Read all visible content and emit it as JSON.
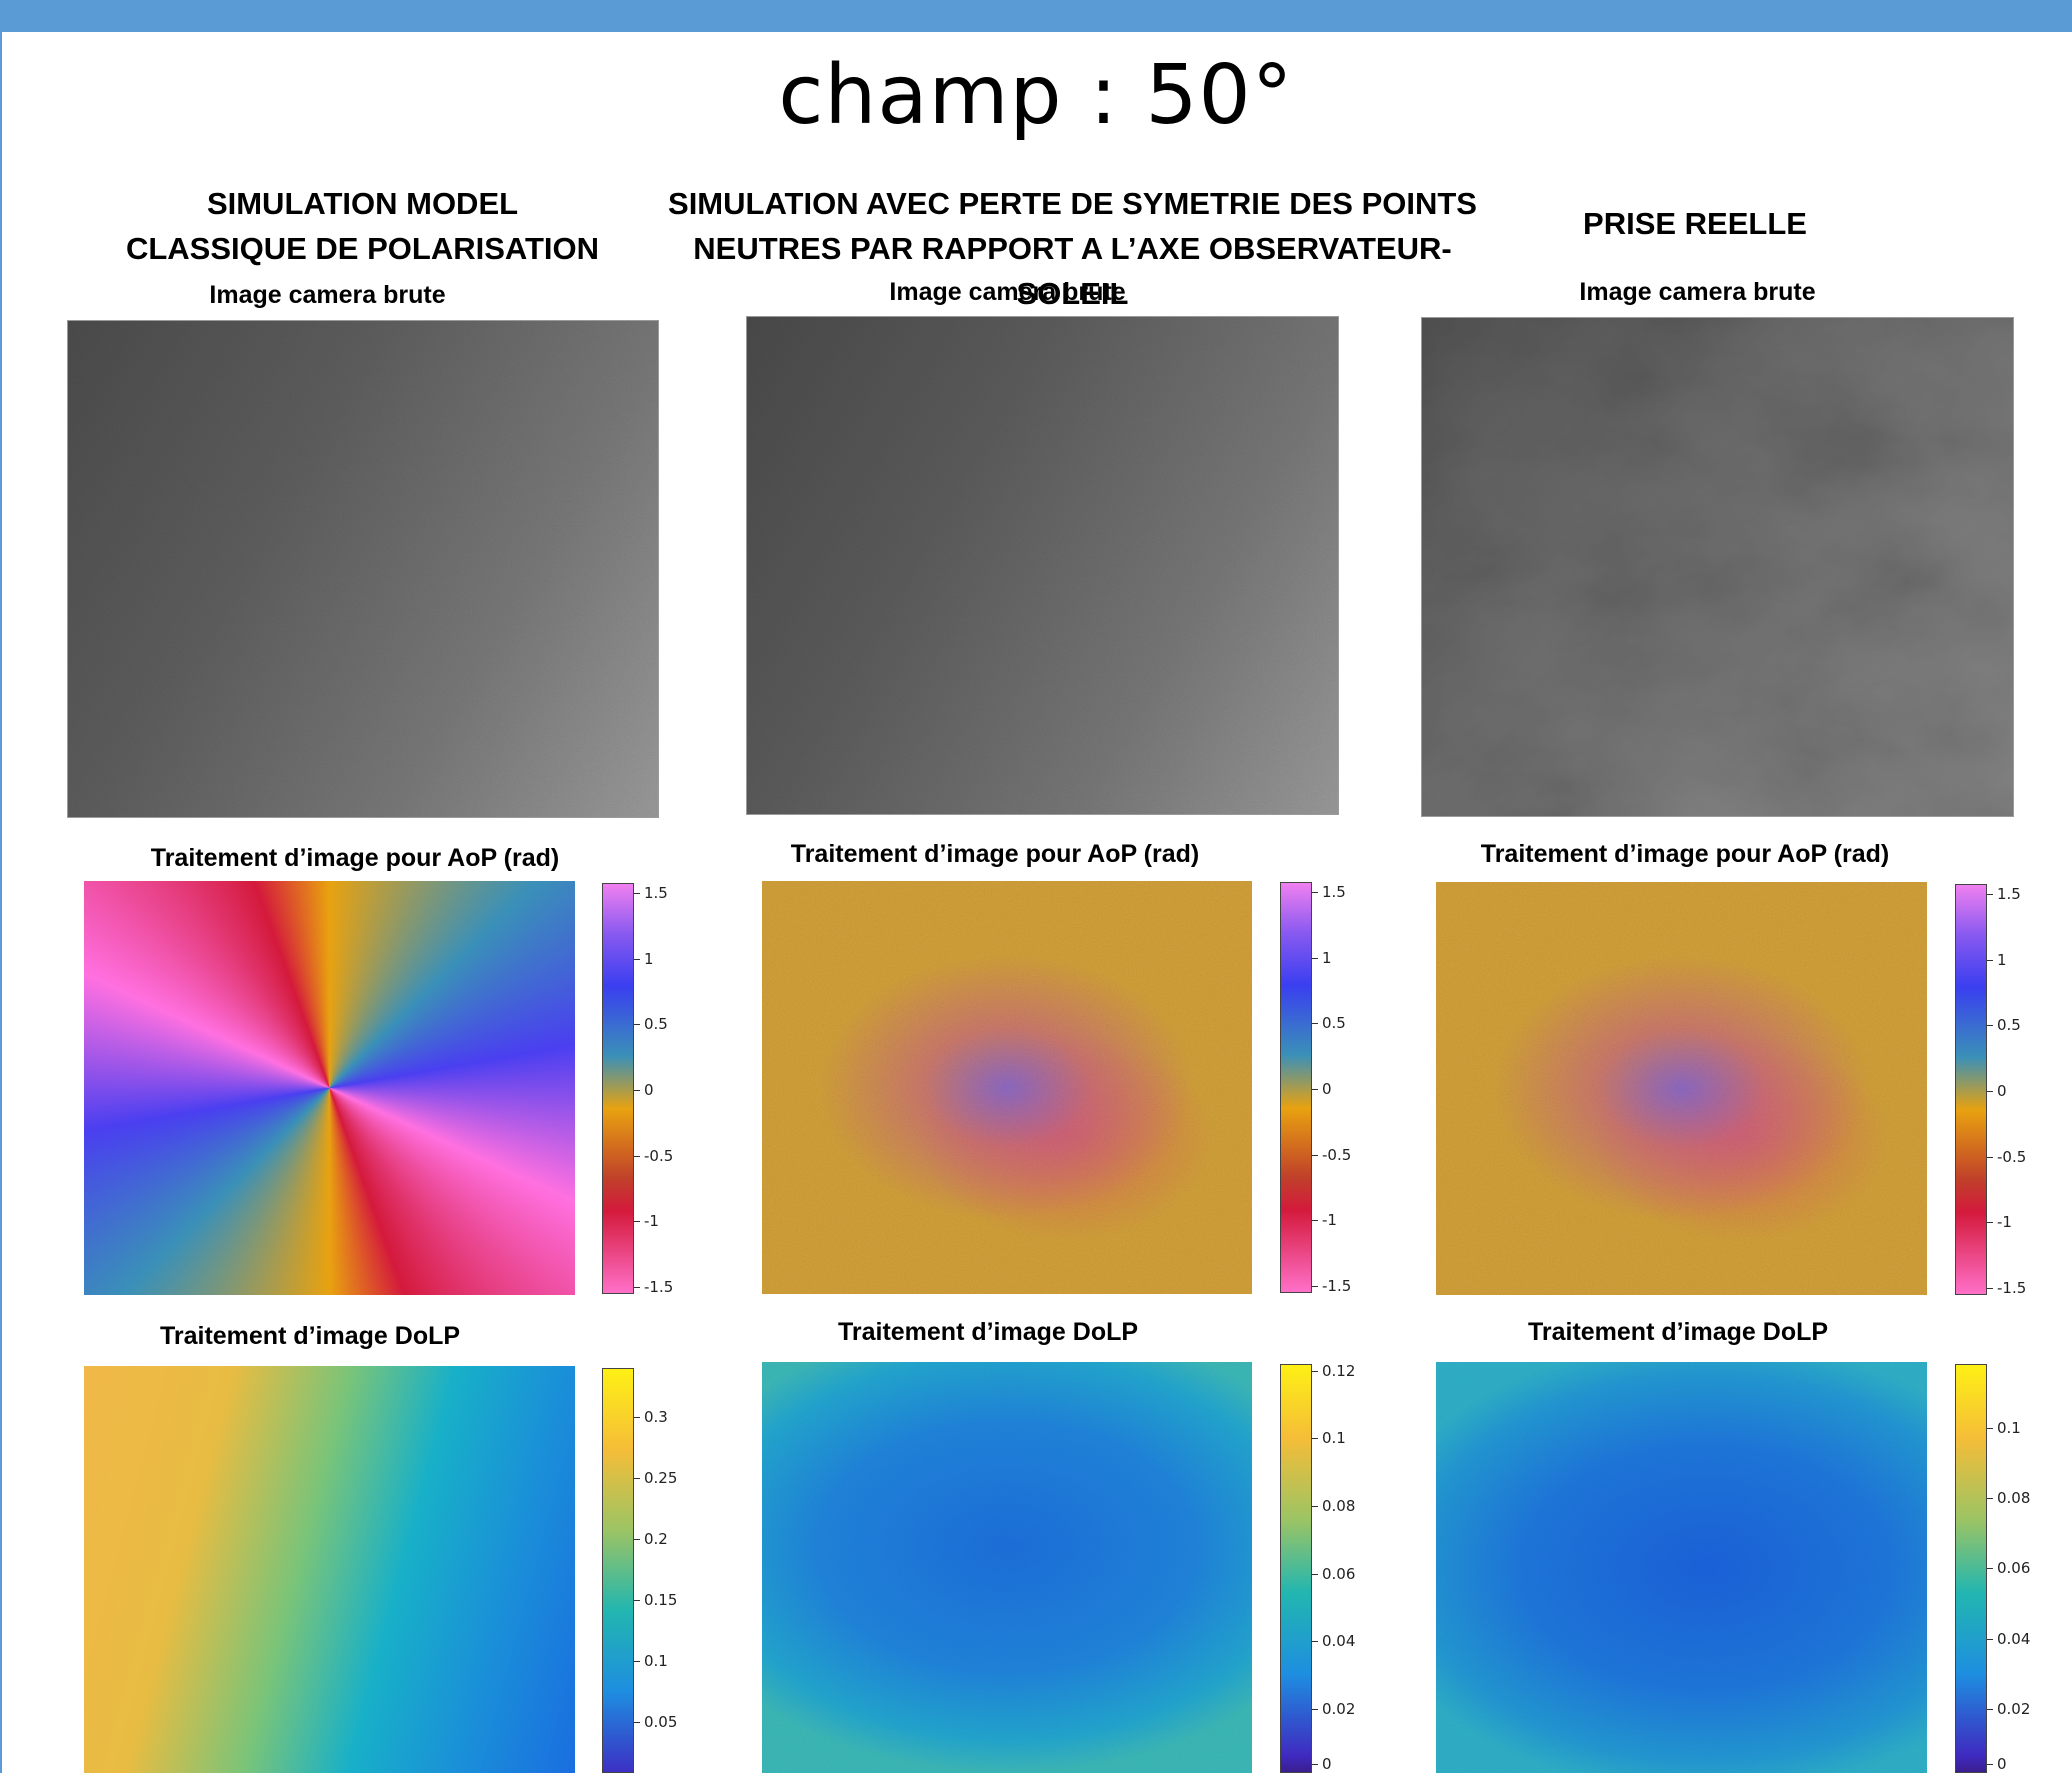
{
  "slide_title": "champ : 50°",
  "columns": [
    {
      "header": [
        "SIMULATION MODEL",
        "CLASSIQUE DE POLARISATION"
      ],
      "raw_label": "Image camera brute",
      "aop_label": "Traitement d’image pour AoP (rad)",
      "dolp_label": "Traitement d’image DoLP",
      "aop_ticks": [
        "1.5",
        "1",
        "0.5",
        "0",
        "-0.5",
        "-1",
        "-1.5"
      ],
      "dolp_ticks": [
        "0.3",
        "0.25",
        "0.2",
        "0.15",
        "0.1",
        "0.05"
      ]
    },
    {
      "header": [
        "SIMULATION AVEC PERTE DE SYMETRIE DES POINTS",
        "NEUTRES PAR RAPPORT A L’AXE OBSERVATEUR-SOLEIL"
      ],
      "raw_label": "Image camera brute",
      "aop_label": "Traitement d’image pour AoP (rad)",
      "dolp_label": "Traitement d’image DoLP",
      "aop_ticks": [
        "1.5",
        "1",
        "0.5",
        "0",
        "-0.5",
        "-1",
        "-1.5"
      ],
      "dolp_ticks": [
        "0.12",
        "0.1",
        "0.08",
        "0.06",
        "0.04",
        "0.02",
        "0"
      ]
    },
    {
      "header": [
        "PRISE REELLE"
      ],
      "raw_label": "Image camera brute",
      "aop_label": "Traitement d’image pour AoP (rad)",
      "dolp_label": "Traitement d’image DoLP",
      "aop_ticks": [
        "1.5",
        "1",
        "0.5",
        "0",
        "-0.5",
        "-1",
        "-1.5"
      ],
      "dolp_ticks": [
        "0.1",
        "0.08",
        "0.06",
        "0.04",
        "0.02",
        "0"
      ]
    }
  ],
  "colors": {
    "accent_bar": "#5b9bd5"
  }
}
